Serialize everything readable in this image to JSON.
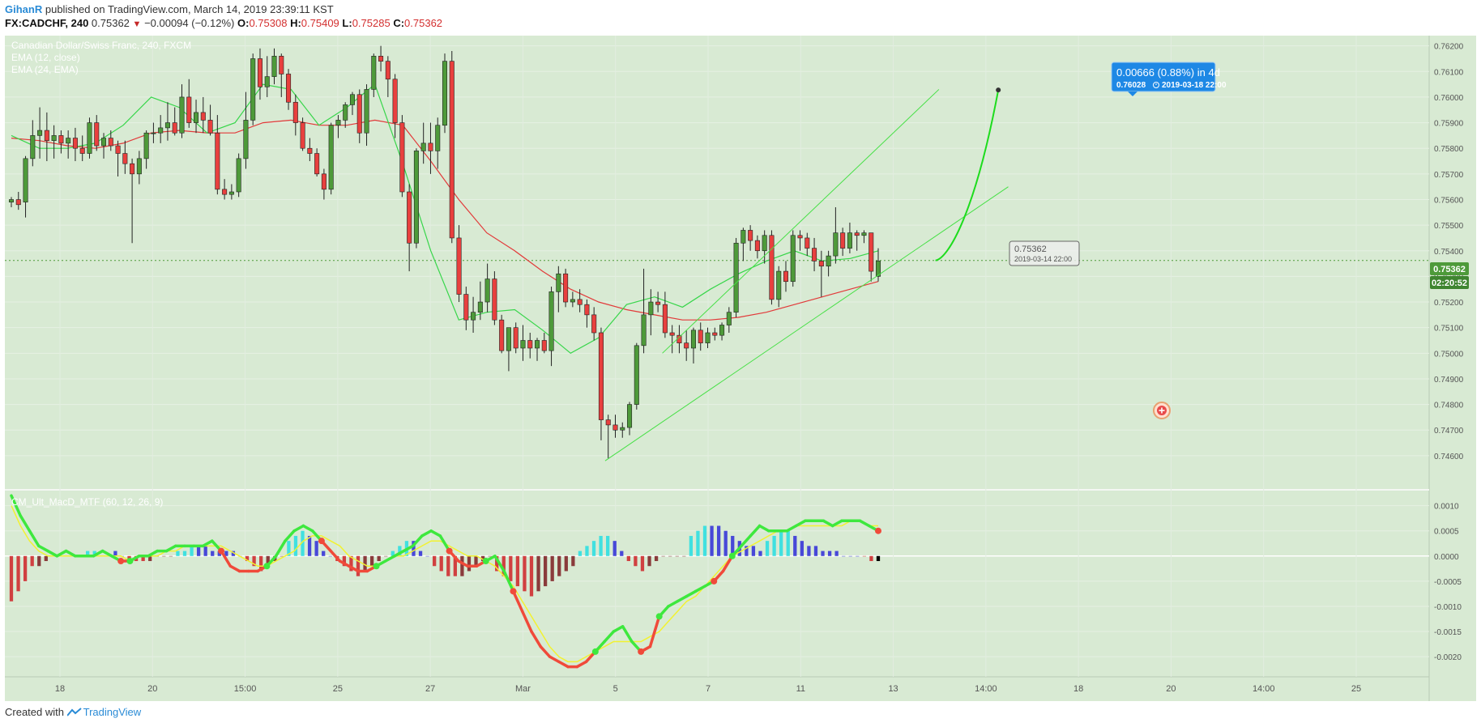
{
  "header": {
    "user": "GihanR",
    "published_text": "published on TradingView.com, March 14, 2019 23:39:11 KST",
    "symbol": "FX:CADCHF, 240",
    "last": "0.75362",
    "change_icon": "triangle-down-icon",
    "change": "−0.00094 (−0.12%)",
    "open_label": "O:",
    "open": "0.75308",
    "high_label": "H:",
    "high": "0.75409",
    "low_label": "L:",
    "low": "0.75285",
    "close_label": "C:",
    "close": "0.75362"
  },
  "legend": {
    "instrument": "Canadian Dollar/Swiss Franc, 240, FXCM",
    "ema_fast": "EMA (12, close)",
    "ema_slow": "EMA (24, EMA)",
    "macd": "CM_Ult_MacD_MTF (60, 12, 26, 9)"
  },
  "price_badge": "0.75362",
  "countdown_badge": "02:20:52",
  "projection": {
    "title": "0.00666 (0.88%) in 4d",
    "price": "0.76028",
    "clock_icon": "clock-icon",
    "date": "2019-03-18  22:00",
    "start_price": "0.75362",
    "start_date": "2019-03-14 22:00"
  },
  "footer": {
    "created": "Created with",
    "brand": "TradingView"
  },
  "colors": {
    "background": "#d8ead3",
    "up": "#4e9a3a",
    "down": "#e8403e",
    "ema_fast": "#37d64a",
    "ema_slow": "#e23a3a",
    "channel": "#46e046",
    "accent": "#1e88e5"
  },
  "chart_data": {
    "type": "candlestick",
    "price_axis_ticks": [
      "0.76200",
      "0.76100",
      "0.76000",
      "0.75900",
      "0.75800",
      "0.75700",
      "0.75600",
      "0.75500",
      "0.75400",
      "0.75300",
      "0.75200",
      "0.75100",
      "0.75000",
      "0.74900",
      "0.74800",
      "0.74700",
      "0.74600"
    ],
    "price_range": [
      0.7447,
      0.7624
    ],
    "macd_axis_ticks": [
      "0.0010",
      "0.0005",
      "0.0000",
      "-0.0005",
      "-0.0010",
      "-0.0015",
      "-0.0020"
    ],
    "macd_range": [
      -0.0024,
      0.0013
    ],
    "time_axis_labels": [
      "18",
      "20",
      "15:00",
      "25",
      "27",
      "Mar",
      "5",
      "7",
      "11",
      "13",
      "14:00",
      "18",
      "20",
      "14:00",
      "25"
    ],
    "candles": [
      [
        0.7559,
        0.7561,
        0.7557,
        0.756
      ],
      [
        0.756,
        0.7563,
        0.7556,
        0.7558
      ],
      [
        0.7559,
        0.7577,
        0.7553,
        0.7576
      ],
      [
        0.7576,
        0.7591,
        0.7573,
        0.7585
      ],
      [
        0.7585,
        0.7596,
        0.7576,
        0.7587
      ],
      [
        0.7587,
        0.7594,
        0.7575,
        0.7583
      ],
      [
        0.7583,
        0.7589,
        0.7576,
        0.7585
      ],
      [
        0.7585,
        0.7587,
        0.7578,
        0.7582
      ],
      [
        0.7582,
        0.7587,
        0.7576,
        0.7584
      ],
      [
        0.7584,
        0.7588,
        0.7575,
        0.758
      ],
      [
        0.758,
        0.7585,
        0.7575,
        0.7578
      ],
      [
        0.7578,
        0.7592,
        0.7576,
        0.759
      ],
      [
        0.759,
        0.7593,
        0.7579,
        0.7581
      ],
      [
        0.7581,
        0.7586,
        0.7576,
        0.7584
      ],
      [
        0.7584,
        0.7587,
        0.7579,
        0.7581
      ],
      [
        0.7581,
        0.7583,
        0.7569,
        0.7578
      ],
      [
        0.7578,
        0.7583,
        0.757,
        0.7574
      ],
      [
        0.7574,
        0.7576,
        0.7543,
        0.757
      ],
      [
        0.757,
        0.7579,
        0.7566,
        0.7576
      ],
      [
        0.7576,
        0.7587,
        0.7572,
        0.7586
      ],
      [
        0.7586,
        0.759,
        0.7582,
        0.7586
      ],
      [
        0.7586,
        0.7593,
        0.7582,
        0.7588
      ],
      [
        0.7588,
        0.7598,
        0.7583,
        0.759
      ],
      [
        0.759,
        0.7596,
        0.7585,
        0.7586
      ],
      [
        0.7586,
        0.7605,
        0.7584,
        0.76
      ],
      [
        0.76,
        0.7607,
        0.7588,
        0.759
      ],
      [
        0.759,
        0.7599,
        0.7586,
        0.7594
      ],
      [
        0.7594,
        0.76,
        0.7586,
        0.7591
      ],
      [
        0.7591,
        0.7597,
        0.7585,
        0.7586
      ],
      [
        0.7586,
        0.7593,
        0.7562,
        0.7564
      ],
      [
        0.7564,
        0.7568,
        0.756,
        0.7562
      ],
      [
        0.7562,
        0.7566,
        0.756,
        0.7563
      ],
      [
        0.7563,
        0.7578,
        0.7561,
        0.7576
      ],
      [
        0.7576,
        0.7602,
        0.7572,
        0.7591
      ],
      [
        0.7591,
        0.7617,
        0.7589,
        0.7615
      ],
      [
        0.7615,
        0.7619,
        0.7599,
        0.7604
      ],
      [
        0.7604,
        0.7616,
        0.76,
        0.7608
      ],
      [
        0.7608,
        0.7619,
        0.7605,
        0.7616
      ],
      [
        0.7616,
        0.7617,
        0.76,
        0.7609
      ],
      [
        0.7609,
        0.7611,
        0.7595,
        0.7598
      ],
      [
        0.7598,
        0.7601,
        0.7585,
        0.759
      ],
      [
        0.759,
        0.7592,
        0.7579,
        0.758
      ],
      [
        0.758,
        0.7584,
        0.7575,
        0.7578
      ],
      [
        0.7578,
        0.758,
        0.7569,
        0.757
      ],
      [
        0.757,
        0.7572,
        0.756,
        0.7564
      ],
      [
        0.7564,
        0.759,
        0.7562,
        0.7589
      ],
      [
        0.7589,
        0.7593,
        0.7584,
        0.7591
      ],
      [
        0.7591,
        0.7598,
        0.7588,
        0.7597
      ],
      [
        0.7597,
        0.7602,
        0.7593,
        0.7601
      ],
      [
        0.7601,
        0.7603,
        0.7582,
        0.7586
      ],
      [
        0.7586,
        0.7605,
        0.7581,
        0.7603
      ],
      [
        0.7603,
        0.7617,
        0.76,
        0.7616
      ],
      [
        0.7616,
        0.762,
        0.761,
        0.7614
      ],
      [
        0.7614,
        0.7616,
        0.76,
        0.7607
      ],
      [
        0.7607,
        0.7609,
        0.7584,
        0.759
      ],
      [
        0.759,
        0.7593,
        0.7561,
        0.7563
      ],
      [
        0.7563,
        0.7566,
        0.7532,
        0.7543
      ],
      [
        0.7543,
        0.758,
        0.7541,
        0.7579
      ],
      [
        0.7579,
        0.759,
        0.7574,
        0.7582
      ],
      [
        0.7582,
        0.759,
        0.757,
        0.7579
      ],
      [
        0.7579,
        0.7592,
        0.7572,
        0.7589
      ],
      [
        0.7589,
        0.7617,
        0.7586,
        0.7614
      ],
      [
        0.7614,
        0.7618,
        0.7543,
        0.7545
      ],
      [
        0.7545,
        0.755,
        0.752,
        0.7523
      ],
      [
        0.7523,
        0.7526,
        0.7509,
        0.7513
      ],
      [
        0.7513,
        0.7522,
        0.7508,
        0.7516
      ],
      [
        0.7516,
        0.7528,
        0.7513,
        0.752
      ],
      [
        0.752,
        0.7535,
        0.7516,
        0.7529
      ],
      [
        0.7529,
        0.7532,
        0.7511,
        0.7513
      ],
      [
        0.7513,
        0.7515,
        0.75,
        0.7501
      ],
      [
        0.7501,
        0.751,
        0.7493,
        0.751
      ],
      [
        0.751,
        0.7512,
        0.75,
        0.7502
      ],
      [
        0.7502,
        0.7511,
        0.7497,
        0.7505
      ],
      [
        0.7505,
        0.7508,
        0.7498,
        0.7502
      ],
      [
        0.7502,
        0.7506,
        0.7497,
        0.7505
      ],
      [
        0.7505,
        0.7508,
        0.75,
        0.7501
      ],
      [
        0.7501,
        0.7526,
        0.7495,
        0.7524
      ],
      [
        0.7524,
        0.7534,
        0.7516,
        0.7531
      ],
      [
        0.7531,
        0.7533,
        0.7518,
        0.752
      ],
      [
        0.752,
        0.7524,
        0.7518,
        0.7521
      ],
      [
        0.7521,
        0.7525,
        0.7516,
        0.7519
      ],
      [
        0.7519,
        0.7521,
        0.751,
        0.7515
      ],
      [
        0.7515,
        0.7518,
        0.7505,
        0.7508
      ],
      [
        0.7508,
        0.751,
        0.7466,
        0.7474
      ],
      [
        0.7474,
        0.7476,
        0.7459,
        0.7472
      ],
      [
        0.7472,
        0.7476,
        0.7467,
        0.747
      ],
      [
        0.747,
        0.7473,
        0.7467,
        0.7471
      ],
      [
        0.7471,
        0.7481,
        0.7468,
        0.748
      ],
      [
        0.748,
        0.7504,
        0.7478,
        0.7503
      ],
      [
        0.7503,
        0.7533,
        0.75,
        0.7515
      ],
      [
        0.7515,
        0.7525,
        0.7507,
        0.752
      ],
      [
        0.752,
        0.7524,
        0.7516,
        0.7519
      ],
      [
        0.7519,
        0.7524,
        0.7506,
        0.7508
      ],
      [
        0.7508,
        0.7511,
        0.75,
        0.7507
      ],
      [
        0.7507,
        0.7511,
        0.75,
        0.7504
      ],
      [
        0.7504,
        0.7509,
        0.7497,
        0.7502
      ],
      [
        0.7502,
        0.751,
        0.7496,
        0.7509
      ],
      [
        0.7509,
        0.7512,
        0.7501,
        0.7504
      ],
      [
        0.7504,
        0.751,
        0.7502,
        0.7508
      ],
      [
        0.7508,
        0.751,
        0.7505,
        0.7507
      ],
      [
        0.7507,
        0.7512,
        0.7505,
        0.7511
      ],
      [
        0.7511,
        0.7518,
        0.7508,
        0.7516
      ],
      [
        0.7516,
        0.7545,
        0.7514,
        0.7543
      ],
      [
        0.7543,
        0.7549,
        0.7536,
        0.7548
      ],
      [
        0.7548,
        0.755,
        0.754,
        0.7544
      ],
      [
        0.7544,
        0.7546,
        0.7537,
        0.754
      ],
      [
        0.754,
        0.7548,
        0.7535,
        0.7546
      ],
      [
        0.7546,
        0.7548,
        0.7519,
        0.7521
      ],
      [
        0.7521,
        0.7534,
        0.7518,
        0.7532
      ],
      [
        0.7532,
        0.7536,
        0.7524,
        0.7528
      ],
      [
        0.7528,
        0.7548,
        0.7526,
        0.7546
      ],
      [
        0.7546,
        0.7548,
        0.754,
        0.7545
      ],
      [
        0.7545,
        0.7547,
        0.7538,
        0.7541
      ],
      [
        0.7541,
        0.7545,
        0.7532,
        0.7536
      ],
      [
        0.7536,
        0.754,
        0.7522,
        0.7534
      ],
      [
        0.7534,
        0.754,
        0.753,
        0.7538
      ],
      [
        0.7538,
        0.7557,
        0.7535,
        0.7547
      ],
      [
        0.7547,
        0.7549,
        0.7538,
        0.7541
      ],
      [
        0.7541,
        0.7551,
        0.7539,
        0.7547
      ],
      [
        0.7547,
        0.7548,
        0.754,
        0.7546
      ],
      [
        0.7546,
        0.7548,
        0.7543,
        0.7547
      ],
      [
        0.7547,
        0.7547,
        0.7528,
        0.7532
      ],
      [
        0.753,
        0.7541,
        0.7528,
        0.7536
      ]
    ],
    "ema_fast": [
      0.7585,
      0.758,
      0.758,
      0.7582,
      0.7589,
      0.76,
      0.7596,
      0.7586,
      0.759,
      0.7605,
      0.7603,
      0.7589,
      0.7596,
      0.7605,
      0.7574,
      0.754,
      0.7513,
      0.7516,
      0.7517,
      0.7509,
      0.75,
      0.7506,
      0.7519,
      0.7522,
      0.7518,
      0.7525,
      0.7531,
      0.7536,
      0.754,
      0.7536,
      0.7537,
      0.754
    ],
    "ema_slow": [
      0.7584,
      0.7583,
      0.7581,
      0.758,
      0.7582,
      0.7586,
      0.7587,
      0.7586,
      0.7586,
      0.759,
      0.7591,
      0.7589,
      0.7589,
      0.7591,
      0.7589,
      0.7575,
      0.756,
      0.7547,
      0.754,
      0.7532,
      0.7525,
      0.752,
      0.7517,
      0.7515,
      0.7513,
      0.7513,
      0.7514,
      0.7516,
      0.7519,
      0.7522,
      0.7525,
      0.7528
    ],
    "channel_upper": [
      [
        0.751,
        0.75
      ],
      [
        1.07,
        0.7603
      ]
    ],
    "channel_lower": [
      [
        0.685,
        0.7458
      ],
      [
        1.15,
        0.7565
      ]
    ],
    "projection_curve": [
      [
        1.066,
        0.75362
      ],
      [
        1.081,
        0.7537
      ],
      [
        1.112,
        0.7555
      ],
      [
        1.1385,
        0.76028
      ]
    ],
    "macd_line": [
      0.0012,
      0.0008,
      0.0005,
      0.0002,
      0.0001,
      0.0,
      0.0001,
      0.0,
      0.0,
      0.0,
      0.0001,
      0.0,
      -0.0001,
      -0.0001,
      0.0,
      0.0,
      0.0001,
      0.0001,
      0.0002,
      0.0002,
      0.0002,
      0.0002,
      0.0003,
      0.0001,
      -0.0002,
      -0.0003,
      -0.0003,
      -0.0003,
      -0.0002,
      0.0,
      0.0003,
      0.0005,
      0.0006,
      0.0005,
      0.0003,
      0.0001,
      -0.0001,
      -0.0002,
      -0.0003,
      -0.0003,
      -0.0002,
      -0.0001,
      0.0,
      0.0001,
      0.0002,
      0.0004,
      0.0005,
      0.0004,
      0.0001,
      -0.0001,
      -0.0002,
      -0.0002,
      -0.0001,
      0.0,
      -0.0003,
      -0.0007,
      -0.0011,
      -0.0015,
      -0.0018,
      -0.002,
      -0.0021,
      -0.0022,
      -0.0022,
      -0.0021,
      -0.0019,
      -0.0017,
      -0.0015,
      -0.0014,
      -0.0017,
      -0.0019,
      -0.0018,
      -0.0012,
      -0.001,
      -0.0009,
      -0.0008,
      -0.0007,
      -0.0006,
      -0.0005,
      -0.0003,
      0.0,
      0.0002,
      0.0004,
      0.0006,
      0.0005,
      0.0005,
      0.0005,
      0.0006,
      0.0007,
      0.0007,
      0.0007,
      0.0006,
      0.0007,
      0.0007,
      0.0007,
      0.0006,
      0.0005
    ],
    "macd_signal": [
      0.001,
      0.0006,
      0.0003,
      0.0001,
      0.0,
      0.0,
      0.0,
      0.0,
      0.0,
      0.0,
      0.0,
      0.0,
      0.0,
      -0.0001,
      0.0,
      0.0,
      0.0,
      0.0001,
      0.0001,
      0.0002,
      0.0002,
      0.0002,
      0.0002,
      0.0002,
      0.0001,
      0.0,
      -0.0001,
      -0.0002,
      -0.0002,
      -0.0001,
      0.0,
      0.0001,
      0.0003,
      0.0004,
      0.0004,
      0.0003,
      0.0002,
      0.0,
      -0.0001,
      -0.0002,
      -0.0002,
      -0.0001,
      0.0,
      0.0,
      0.0001,
      0.0002,
      0.0003,
      0.0003,
      0.0002,
      0.0001,
      0.0,
      0.0,
      -0.0001,
      -0.0002,
      -0.0004,
      -0.0006,
      -0.0009,
      -0.0012,
      -0.0015,
      -0.0018,
      -0.002,
      -0.0021,
      -0.0021,
      -0.002,
      -0.0019,
      -0.0018,
      -0.0017,
      -0.0017,
      -0.0017,
      -0.0017,
      -0.0016,
      -0.0015,
      -0.0013,
      -0.0011,
      -0.0009,
      -0.0008,
      -0.0006,
      -0.0004,
      -0.0002,
      0.0,
      0.0001,
      0.0002,
      0.0003,
      0.0004,
      0.0005,
      0.0005,
      0.0006,
      0.0006,
      0.0006,
      0.0006,
      0.0006,
      0.0006,
      0.0007,
      0.0007,
      0.0006,
      0.0006
    ],
    "macd_hist": [
      -0.0009,
      -0.0007,
      -0.0005,
      -0.0002,
      -0.0002,
      -0.0001,
      0,
      0,
      0,
      0,
      0,
      0.0001,
      0.0001,
      0,
      0,
      0.0001,
      0,
      -0.0001,
      -0.0001,
      -0.0001,
      -0.0001,
      0,
      0,
      0,
      0.0001,
      0.0001,
      0.0002,
      0.0002,
      0.0002,
      0.0001,
      0.0001,
      0.0001,
      0.0001,
      0,
      -0.0001,
      -0.0002,
      -0.0003,
      -0.0002,
      -0.0001,
      0,
      0.0003,
      0.0004,
      0.0005,
      0.0004,
      0.0003,
      0.0001,
      0,
      -0.0001,
      -0.0002,
      -0.0003,
      -0.0004,
      -0.0003,
      -0.0002,
      -0.0001,
      0,
      0.0001,
      0.0002,
      0.0003,
      0.0003,
      0.0001,
      0,
      -0.0002,
      -0.0003,
      -0.0004,
      -0.0004,
      -0.0004,
      -0.0003,
      -0.0002,
      -0.0001,
      0,
      -0.0003,
      -0.0004,
      -0.0005,
      -0.0006,
      -0.0007,
      -0.0008,
      -0.0007,
      -0.0006,
      -0.0005,
      -0.0004,
      -0.0003,
      -0.0002,
      0.0001,
      0.0002,
      0.0003,
      0.0004,
      0.0004,
      0.0003,
      0.0001,
      -0.0001,
      -0.0002,
      -0.0003,
      -0.0002,
      -0.0001,
      0,
      0,
      0,
      0,
      0.0004,
      0.0005,
      0.0006,
      0.0006,
      0.0006,
      0.0005,
      0.0004,
      0.0003,
      0.0002,
      0.0002,
      0.0001,
      0.0003,
      0.0004,
      0.0005,
      0.0005,
      0.0004,
      0.0003,
      0.0002,
      0.0002,
      0.0001,
      0.0001,
      0.0001,
      0,
      0,
      0,
      0,
      -0.0001,
      -0.0001
    ],
    "macd_hist_color": [
      "#d04040",
      "#d04040",
      "#d04040",
      "#d04040",
      "#8a3b3b",
      "#8a3b3b",
      "#8a3b3b",
      "#8a3b3b",
      "#8a3b3b",
      "#8a3b3b",
      "#8a3b3b",
      "#40e0e0",
      "#40e0e0",
      "#40e0e0",
      "#4848d8",
      "#4848d8",
      "#4848d8",
      "#d04040",
      "#d04040",
      "#d04040",
      "#8a3b3b",
      "#8a3b3b",
      "#8a3b3b",
      "#8a3b3b",
      "#40e0e0",
      "#40e0e0",
      "#40e0e0",
      "#4848d8",
      "#4848d8",
      "#4848d8",
      "#4848d8",
      "#4848d8",
      "#4848d8",
      "#4848d8",
      "#d04040",
      "#d04040",
      "#d04040",
      "#8a3b3b",
      "#8a3b3b",
      "#8a3b3b",
      "#40e0e0",
      "#40e0e0",
      "#40e0e0",
      "#4848d8",
      "#4848d8",
      "#4848d8",
      "#4848d8",
      "#d04040",
      "#d04040",
      "#d04040",
      "#d04040",
      "#8a3b3b",
      "#8a3b3b",
      "#8a3b3b",
      "#8a3b3b",
      "#40e0e0",
      "#40e0e0",
      "#40e0e0",
      "#4848d8",
      "#4848d8",
      "#4848d8",
      "#d04040",
      "#d04040",
      "#d04040",
      "#d04040",
      "#8a3b3b",
      "#8a3b3b",
      "#8a3b3b",
      "#8a3b3b",
      "#8a3b3b",
      "#d04040",
      "#d04040",
      "#d04040",
      "#d04040",
      "#d04040",
      "#d04040",
      "#8a3b3b",
      "#8a3b3b",
      "#8a3b3b",
      "#8a3b3b",
      "#8a3b3b",
      "#8a3b3b",
      "#40e0e0",
      "#40e0e0",
      "#40e0e0",
      "#40e0e0",
      "#40e0e0",
      "#4848d8",
      "#4848d8",
      "#d04040",
      "#d04040",
      "#d04040",
      "#8a3b3b",
      "#8a3b3b",
      "#8a3b3b",
      "#8a3b3b",
      "#8a3b3b",
      "#8a3b3b",
      "#40e0e0",
      "#40e0e0",
      "#40e0e0",
      "#4848d8",
      "#4848d8",
      "#4848d8",
      "#4848d8",
      "#4848d8",
      "#4848d8",
      "#4848d8",
      "#4848d8",
      "#40e0e0",
      "#40e0e0",
      "#40e0e0",
      "#40e0e0",
      "#4848d8",
      "#4848d8",
      "#4848d8",
      "#4848d8",
      "#4848d8",
      "#4848d8",
      "#4848d8",
      "#4848d8",
      "#4848d8",
      "#4848d8",
      "#d04040",
      "#d04040"
    ]
  }
}
